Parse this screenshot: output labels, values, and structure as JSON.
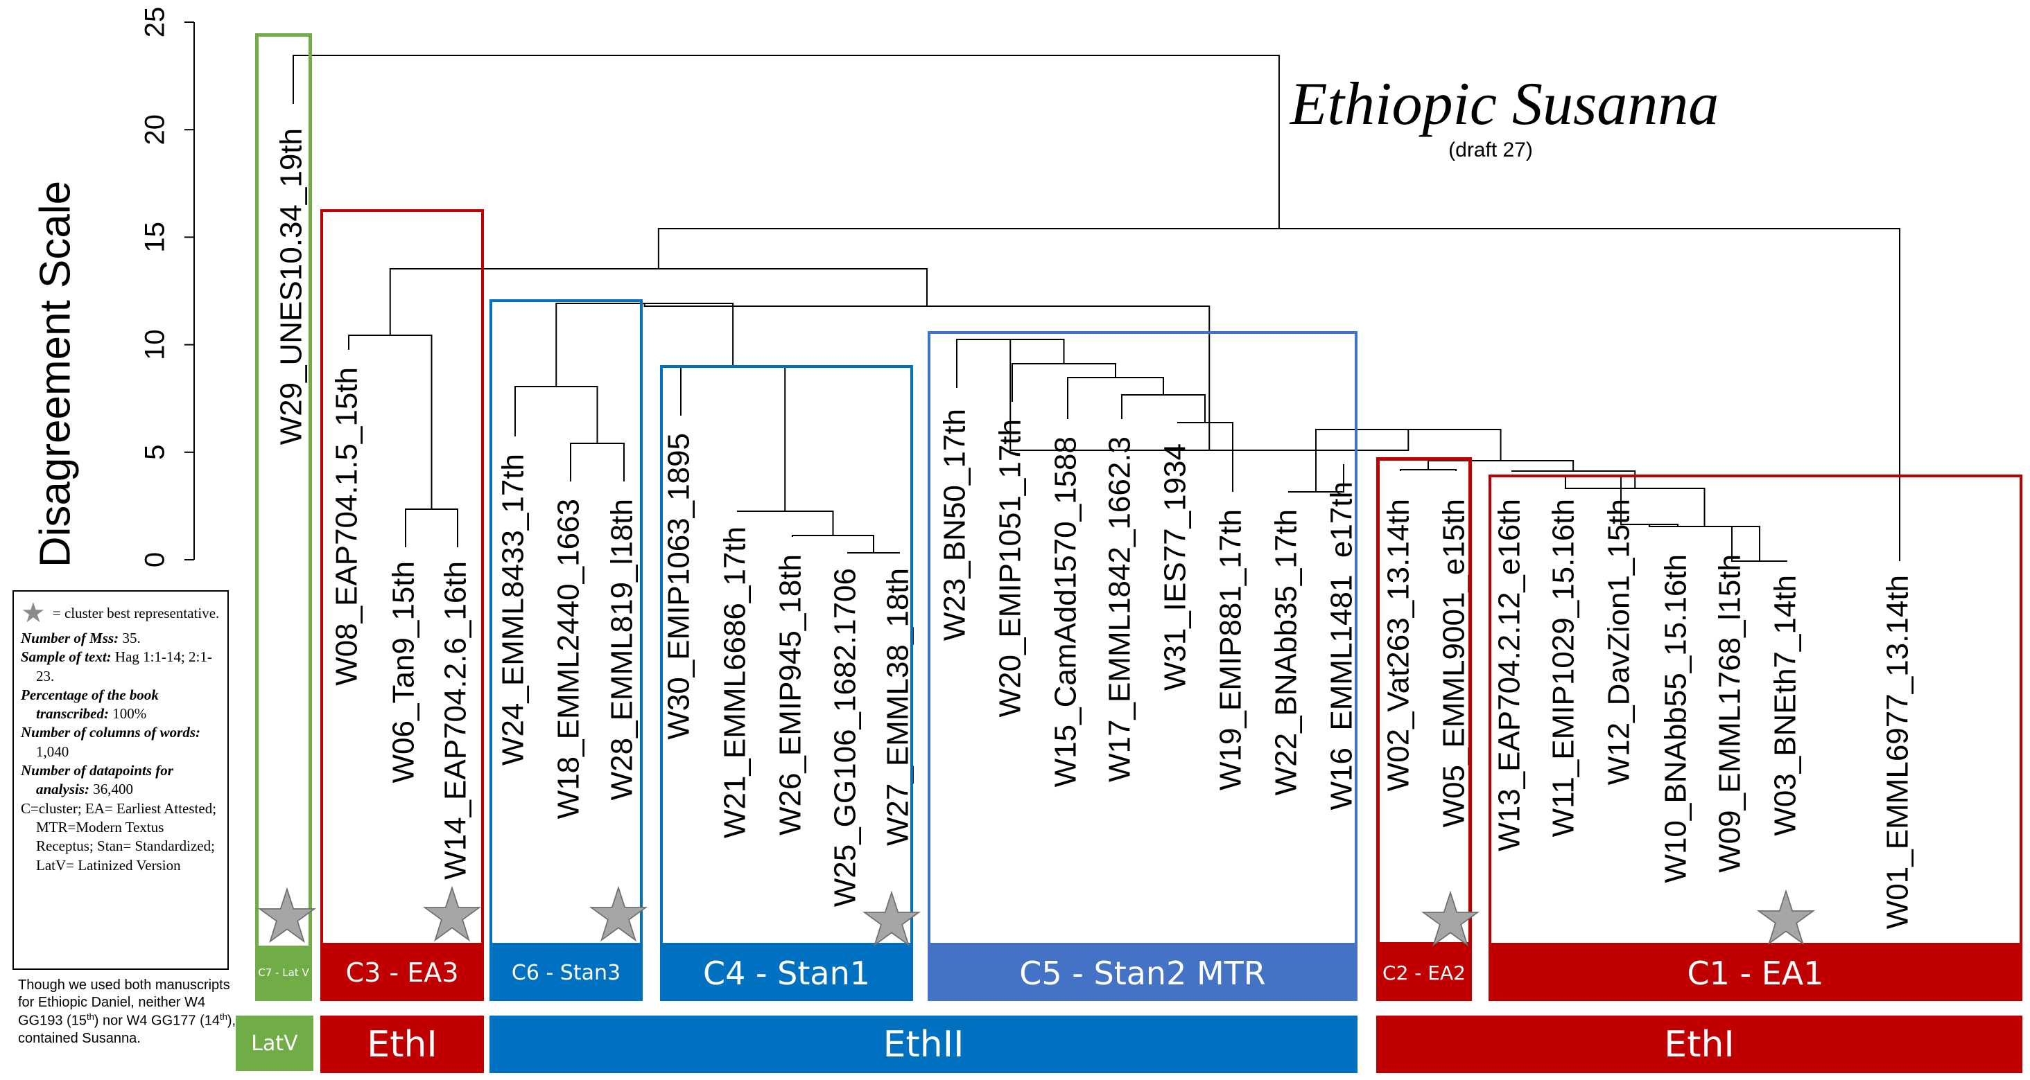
{
  "title": "Ethiopic Susanna",
  "subtitle": "(draft 27)",
  "y_axis": {
    "title": "Disagreement Scale",
    "ticks": [
      "0",
      "5",
      "10",
      "15",
      "20",
      "25"
    ]
  },
  "leaves": [
    "W29_UNES10.34_19th",
    "W08_EAP704.1.5_15th",
    "W06_Tan9_15th",
    "W14_EAP704.2.6_16th",
    "W24_EMML8433_17th",
    "W18_EMML2440_1663",
    "W28_EMML819_l18th",
    "W30_EMIP1063_1895",
    "W21_EMML6686_17th",
    "W26_EMIP945_18th",
    "W25_GG106_1682.1706",
    "W27_EMML38_18th",
    "W23_BN50_17th",
    "W20_EMIP1051_17th",
    "W15_CamAdd1570_1588",
    "W17_EMML1842_1662.3",
    "W31_IES77_1934",
    "W19_EMIP881_17th",
    "W22_BNAbb35_17th",
    "W16_EMML1481_e17th",
    "W02_Vat263_13.14th",
    "W05_EMML9001_e15th",
    "W13_EAP704.2.12_e16th",
    "W11_EMIP1029_15.16th",
    "W12_DavZion1_15th",
    "W10_BNAbb55_15.16th",
    "W09_EMML1768_l15th",
    "W03_BNEth7_14th",
    "W01_EMML6977_13.14th"
  ],
  "clusters": [
    {
      "label": "C7 - Lat V",
      "color": "#70ad47"
    },
    {
      "label": "C3 - EA3",
      "color": "#c00000"
    },
    {
      "label": "C6 - Stan3",
      "color": "#0070c0"
    },
    {
      "label": "C4 - Stan1",
      "color": "#0070c0"
    },
    {
      "label": "C5 - Stan2 MTR",
      "color": "#4472c4"
    },
    {
      "label": "C2 - EA2",
      "color": "#c00000"
    },
    {
      "label": "C1 - EA1",
      "color": "#c00000"
    }
  ],
  "groups": [
    {
      "label": "LatV",
      "color": "#70ad47"
    },
    {
      "label": "EthI",
      "color": "#c00000"
    },
    {
      "label": "EthII",
      "color": "#0070c0"
    },
    {
      "label": "EthI",
      "color": "#c00000"
    }
  ],
  "star_color": "#a6a6a6",
  "legend": {
    "star_text": "= cluster best representative.",
    "mss_label": "Number of Mss:",
    "mss_value": "35.",
    "sample_label": "Sample  of text:",
    "sample_value": "Hag 1:1-14; 2:1-23.",
    "percent_label": "Percentage of the book transcribed:",
    "percent_value": "100%",
    "columns_label": "Number of columns of words:",
    "columns_value": "1,040",
    "datapoints_label": "Number of datapoints for analysis:",
    "datapoints_value": "36,400",
    "abbrev": "C=cluster; EA= Earliest Attested; MTR=Modern Textus Receptus; Stan= Standardized; LatV= Latinized Version"
  },
  "footnote": {
    "part1": "Though we used both manuscripts for Ethiopic Daniel, neither W4 GG193 (15",
    "sup1": "th",
    "part2": ") nor W4 GG177 (14",
    "sup2": "th",
    "part3": "), contained Susanna."
  }
}
